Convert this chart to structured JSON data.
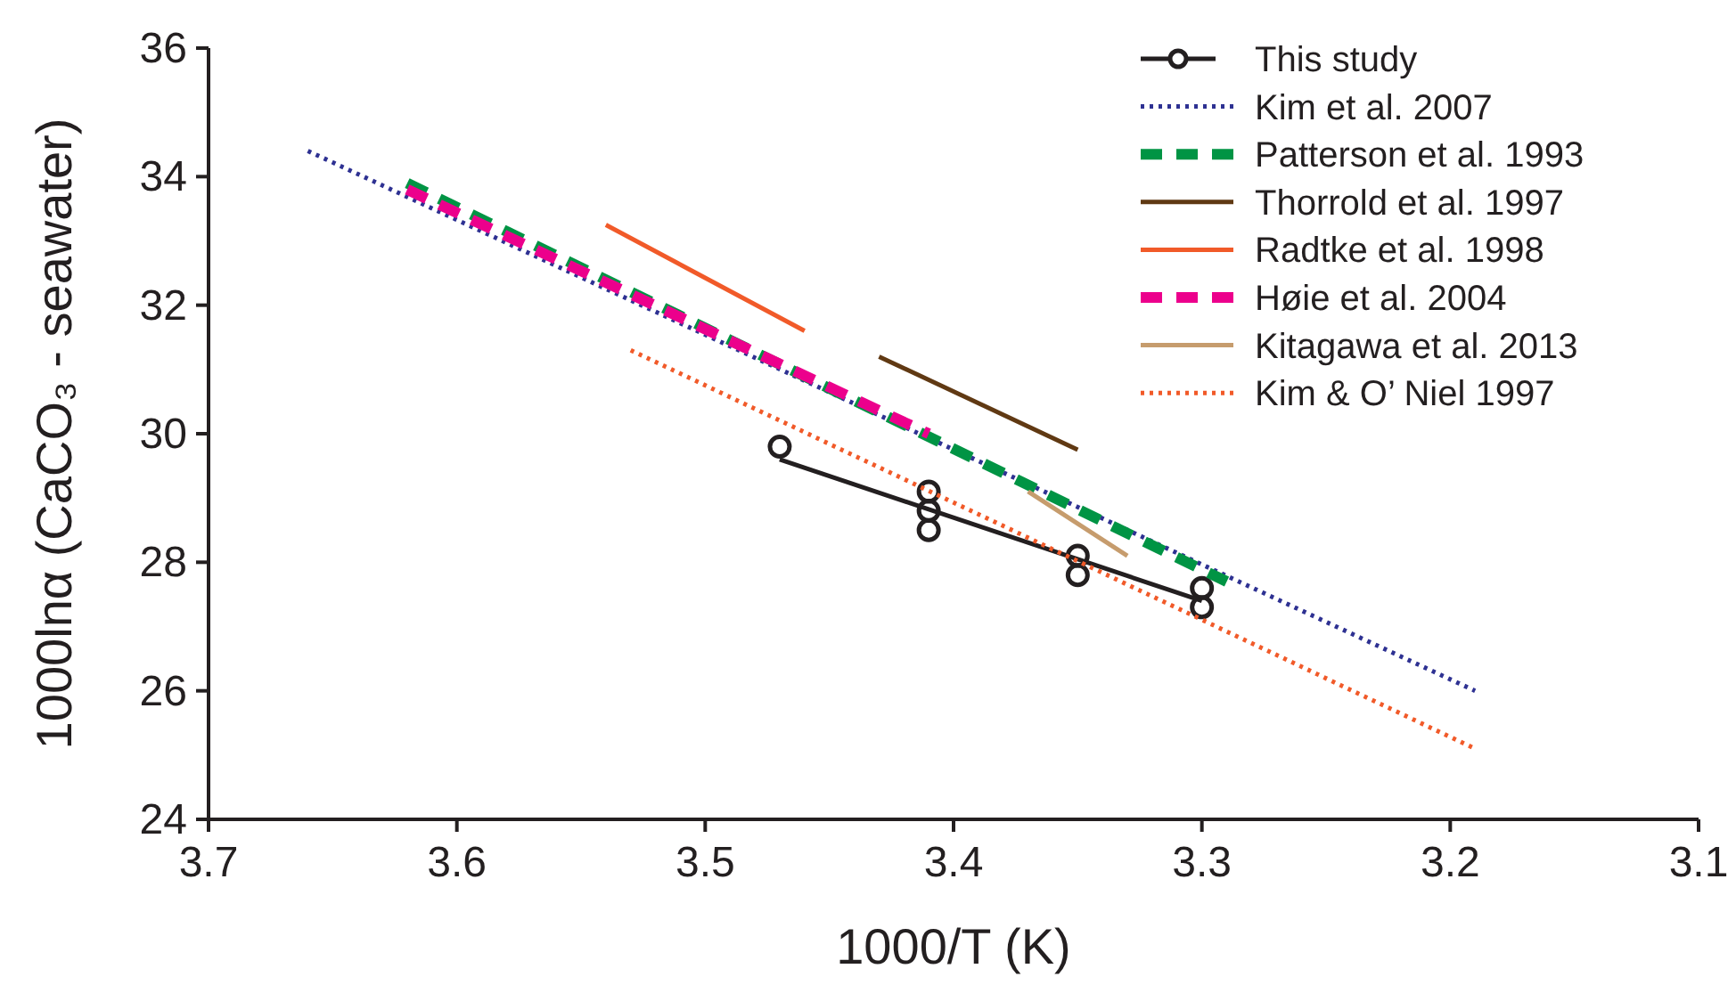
{
  "chart_data": {
    "type": "line",
    "xlabel": "1000/T (K)",
    "ylabel": "1000lnα (CaCO₃ - seawater)",
    "xlim": [
      3.7,
      3.1
    ],
    "xticks": [
      3.7,
      3.6,
      3.5,
      3.4,
      3.3,
      3.2,
      3.1
    ],
    "ylim": [
      24,
      36
    ],
    "yticks": [
      24,
      26,
      28,
      30,
      32,
      34,
      36
    ],
    "grid": false,
    "legend": "top right",
    "series": [
      {
        "name": "This study",
        "type": "scatter",
        "marker": "circle",
        "color": "#231f20",
        "x": [
          3.47,
          3.41,
          3.41,
          3.41,
          3.35,
          3.35,
          3.3,
          3.3
        ],
        "values": [
          29.8,
          29.1,
          28.8,
          28.5,
          28.1,
          27.8,
          27.6,
          27.3
        ]
      },
      {
        "type": "line",
        "color": "#231f20",
        "line_style": "solid",
        "x": [
          3.47,
          3.3
        ],
        "values": [
          29.6,
          27.4
        ]
      },
      {
        "name": "Kim et al. 2007",
        "color": "#2e3192",
        "line_style": "dotted",
        "x": [
          3.66,
          3.19
        ],
        "values": [
          34.4,
          26.0
        ]
      },
      {
        "name": "Patterson et al. 1993",
        "color": "#009444",
        "line_style": "dashed",
        "x": [
          3.62,
          3.29
        ],
        "values": [
          33.9,
          27.7
        ]
      },
      {
        "name": "Thorrold et al. 1997",
        "color": "#603913",
        "line_style": "solid",
        "x": [
          3.43,
          3.35
        ],
        "values": [
          31.2,
          29.75
        ]
      },
      {
        "name": "Radtke et al. 1998",
        "color": "#f15a29",
        "line_style": "solid",
        "x": [
          3.54,
          3.46
        ],
        "values": [
          33.25,
          31.6
        ]
      },
      {
        "name": "Høie et al. 2004",
        "color": "#ec008c",
        "line_style": "dashed",
        "x": [
          3.62,
          3.41
        ],
        "values": [
          33.8,
          30.0
        ]
      },
      {
        "name": "Kitagawa et al. 2013",
        "color": "#c69c6d",
        "line_style": "solid",
        "x": [
          3.37,
          3.33
        ],
        "values": [
          29.1,
          28.1
        ]
      },
      {
        "name": "Kim & O’  Niel 1997",
        "color": "#f15a29",
        "line_style": "dotted",
        "x": [
          3.53,
          3.19
        ],
        "values": [
          31.3,
          25.1
        ]
      }
    ]
  }
}
